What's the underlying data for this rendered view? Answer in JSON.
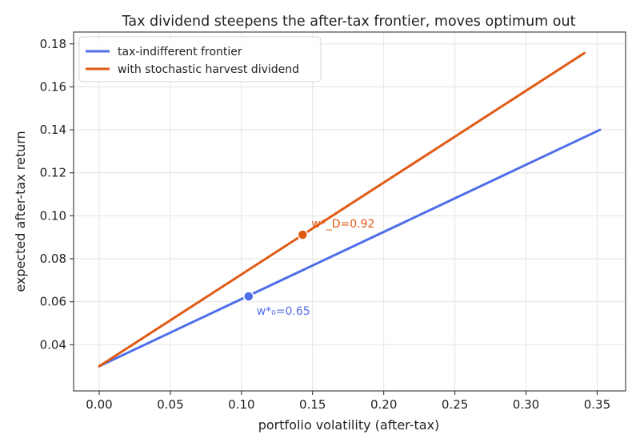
{
  "chart_data": {
    "type": "line",
    "title": "Tax dividend steepens the after-tax frontier, moves optimum out",
    "xlabel": "portfolio volatility (after-tax)",
    "ylabel": "expected after-tax return",
    "xlim": [
      -0.018,
      0.37
    ],
    "ylim": [
      0.0185,
      0.1855
    ],
    "xticks": [
      "0.00",
      "0.05",
      "0.10",
      "0.15",
      "0.20",
      "0.25",
      "0.30",
      "0.35"
    ],
    "yticks": [
      "0.04",
      "0.06",
      "0.08",
      "0.10",
      "0.12",
      "0.14",
      "0.16",
      "0.18"
    ],
    "grid": true,
    "legend_position": "top-left",
    "series": [
      {
        "name": "tax-indifferent frontier",
        "color": "#4f6ee8",
        "x": [
          0.0,
          0.352
        ],
        "y": [
          0.03,
          0.14
        ],
        "optimum": {
          "x": 0.105,
          "y": 0.0625,
          "label": "w*₀=0.65"
        }
      },
      {
        "name": "with stochastic harvest dividend",
        "color": "#e05a14",
        "x": [
          0.0,
          0.341
        ],
        "y": [
          0.03,
          0.1757
        ],
        "optimum": {
          "x": 0.143,
          "y": 0.0912,
          "label": "w*_D=0.92"
        }
      }
    ]
  }
}
